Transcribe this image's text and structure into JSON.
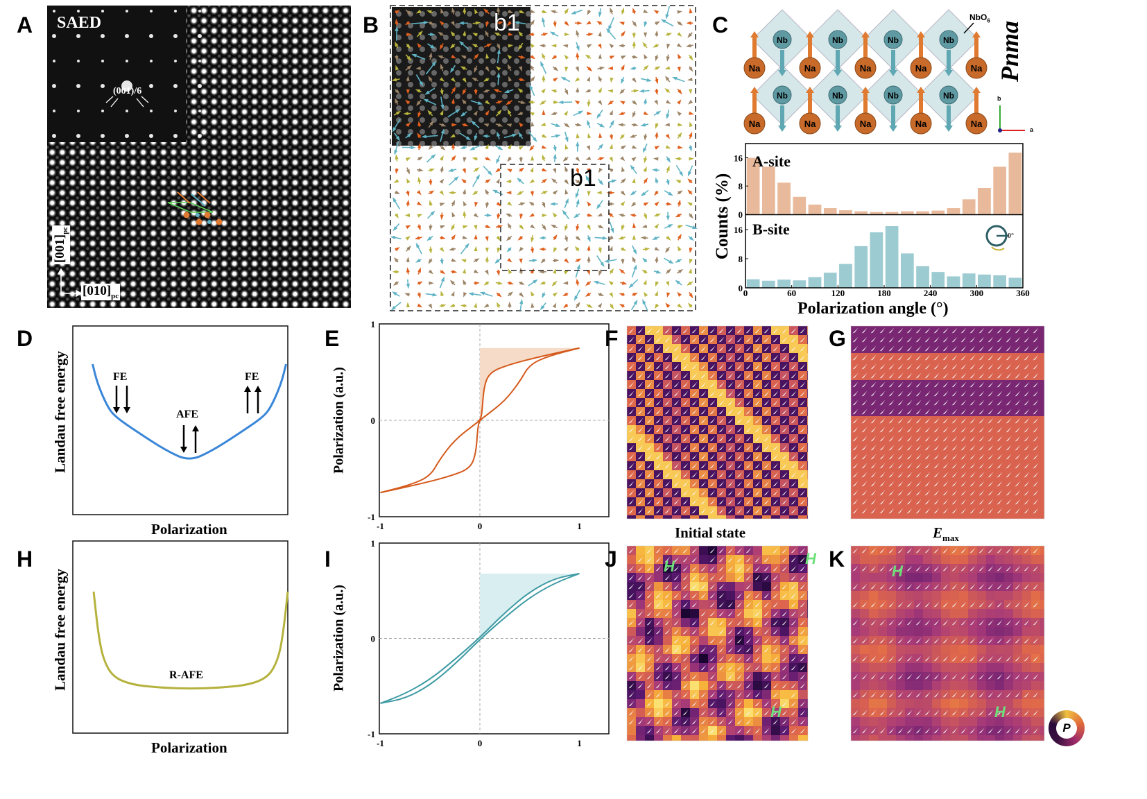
{
  "panels": {
    "A": {
      "letter": "A",
      "inset_label": "SAED",
      "spot_label": "(001)/6",
      "axis_vertical": "[001]",
      "axis_vertical_sub": "pc",
      "axis_horizontal": "[010]",
      "axis_horizontal_sub": "pc"
    },
    "B": {
      "letter": "B",
      "inset_label": "b1",
      "box_label": "b1",
      "arrow_colors": [
        "#e0601e",
        "#5fb3c4",
        "#b9b43e",
        "#9c8466"
      ]
    },
    "C": {
      "letter": "C",
      "a_site_atom": "Na",
      "b_site_atom": "Nb",
      "octahedron_label": "NbO",
      "octahedron_sub": "6",
      "space_group": "Pnma",
      "axis_a": "a",
      "axis_b": "b",
      "ylabel": "Counts (%)",
      "xlabel": "Polarization angle (°)",
      "a_site_label": "A-site",
      "b_site_label": "B-site",
      "angle_icon_label": "0°"
    },
    "D": {
      "letter": "D",
      "ylabel": "Landau free energy",
      "xlabel": "Polarization",
      "annotations": [
        "FE",
        "AFE",
        "FE"
      ],
      "curve_color": "#3a86d8"
    },
    "E": {
      "letter": "E",
      "ylabel": "Polarization (a.u.)",
      "curve_color": "#d4581a",
      "fill_color": "#f6dcc8"
    },
    "F": {
      "letter": "F",
      "caption": "Initial state"
    },
    "G": {
      "letter": "G",
      "caption_main": "E",
      "caption_sub": "max"
    },
    "H": {
      "letter": "H",
      "ylabel": "Landau free energy",
      "xlabel": "Polarization",
      "annotation": "R-AFE",
      "curve_color": "#b5b23e"
    },
    "I": {
      "letter": "I",
      "ylabel": "Polarization (a.u.)",
      "curve_color": "#3d9aa3",
      "fill_color": "#d9eef1"
    },
    "J": {
      "letter": "J",
      "marker": "H"
    },
    "K": {
      "letter": "K",
      "marker": "H",
      "legend_icon_label": "P"
    }
  },
  "chart_data": [
    {
      "panel": "C",
      "type": "bar",
      "xlabel": "Polarization angle (°)",
      "ylabel": "Counts (%)",
      "xlim": [
        0,
        360
      ],
      "xticks": [
        0,
        60,
        120,
        180,
        240,
        300,
        360
      ],
      "ylim": [
        0,
        20
      ],
      "yticks": [
        0,
        8,
        16
      ],
      "bin_width": 20,
      "categories": [
        10,
        30,
        50,
        70,
        90,
        110,
        130,
        150,
        170,
        190,
        210,
        230,
        250,
        270,
        290,
        310,
        330,
        350
      ],
      "series": [
        {
          "name": "A-site",
          "color": "#e8b99a",
          "values": [
            16,
            13.5,
            9,
            5,
            2.8,
            1.8,
            1.2,
            0.9,
            0.7,
            0.7,
            0.9,
            0.9,
            1.1,
            1.8,
            4.3,
            7.5,
            13.5,
            17.5
          ]
        },
        {
          "name": "B-site",
          "color": "#9ccbd1",
          "values": [
            2.4,
            2.0,
            2.3,
            2.1,
            3.0,
            4.2,
            6.6,
            11.5,
            15.3,
            17.0,
            9.5,
            6.0,
            4.4,
            3.2,
            4.0,
            3.7,
            3.5,
            2.8
          ]
        }
      ]
    },
    {
      "panel": "D",
      "type": "line",
      "xlabel": "Polarization",
      "ylabel": "Landau free energy",
      "x": [
        -1,
        -0.95,
        -0.85,
        -0.77,
        -0.52,
        -0.24,
        0,
        0.24,
        0.52,
        0.77,
        0.85,
        0.95,
        1
      ],
      "y": [
        1,
        0.8,
        0.57,
        0.46,
        0.29,
        0.11,
        0,
        0.11,
        0.29,
        0.46,
        0.57,
        0.8,
        1
      ]
    },
    {
      "panel": "E",
      "type": "line",
      "ylabel": "Polarization (a.u.)",
      "xlim": [
        -1,
        1.3
      ],
      "ylim": [
        -1,
        1
      ],
      "xticks": [
        -1,
        0,
        1
      ],
      "yticks": [
        -1,
        0,
        1
      ],
      "series": [
        {
          "x": [
            1,
            0.6,
            0.3,
            0.1,
            0.04,
            0.02,
            0,
            -0.05,
            -0.25,
            -0.4,
            -0.5,
            -0.7,
            -1
          ],
          "y": [
            0.75,
            0.66,
            0.58,
            0.5,
            0.35,
            0.06,
            0,
            -0.04,
            -0.2,
            -0.4,
            -0.58,
            -0.67,
            -0.75
          ]
        },
        {
          "x": [
            -1,
            -0.6,
            -0.3,
            -0.1,
            -0.04,
            -0.02,
            0,
            0.05,
            0.25,
            0.4,
            0.5,
            0.7,
            1
          ],
          "y": [
            -0.75,
            -0.66,
            -0.58,
            -0.5,
            -0.35,
            -0.06,
            0,
            0.04,
            0.2,
            0.4,
            0.58,
            0.67,
            0.75
          ]
        }
      ]
    },
    {
      "panel": "H",
      "type": "line",
      "xlabel": "Polarization",
      "ylabel": "Landau free energy",
      "x": [
        -1,
        -0.95,
        -0.9,
        -0.8,
        -0.6,
        -0.3,
        0,
        0.3,
        0.6,
        0.8,
        0.9,
        0.95,
        1
      ],
      "y": [
        1,
        0.55,
        0.3,
        0.12,
        0.04,
        0.01,
        0,
        0.01,
        0.04,
        0.12,
        0.3,
        0.55,
        1
      ]
    },
    {
      "panel": "I",
      "type": "line",
      "ylabel": "Polarization (a.u.)",
      "xlim": [
        -1,
        1.3
      ],
      "ylim": [
        -1,
        1
      ],
      "xticks": [
        -1,
        0,
        1
      ],
      "yticks": [
        -1,
        0,
        1
      ],
      "series": [
        {
          "x": [
            1,
            0.75,
            0.5,
            0.25,
            0,
            -0.25,
            -0.5,
            -0.75,
            -1
          ],
          "y": [
            0.68,
            0.63,
            0.49,
            0.27,
            0.01,
            -0.22,
            -0.43,
            -0.58,
            -0.68
          ]
        },
        {
          "x": [
            -1,
            -0.75,
            -0.5,
            -0.25,
            0,
            0.25,
            0.5,
            0.75,
            1
          ],
          "y": [
            -0.68,
            -0.63,
            -0.49,
            -0.27,
            -0.01,
            0.22,
            0.43,
            0.58,
            0.68
          ]
        }
      ]
    }
  ]
}
